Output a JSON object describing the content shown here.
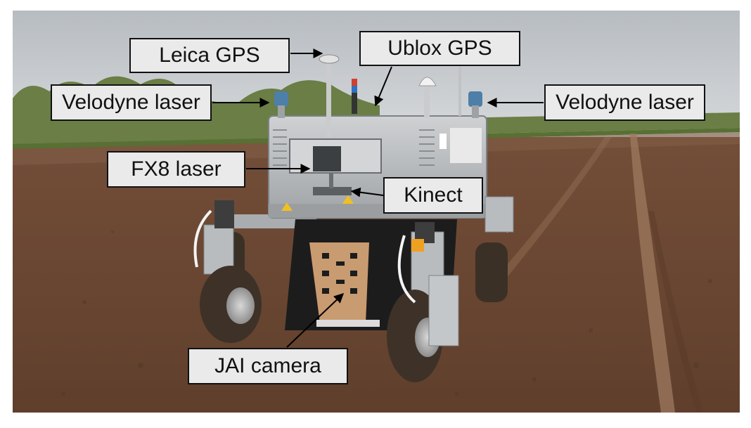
{
  "colors": {
    "sky": "#c5c9cd",
    "treeline": "#6a7e45",
    "soil": "#6e4a35",
    "robot_body": "#b9bcbf",
    "label_fill": "#eaeaea",
    "label_border": "#111111"
  },
  "labels": {
    "leica_gps": "Leica GPS",
    "ublox_gps": "Ublox GPS",
    "velodyne_left": "Velodyne laser",
    "velodyne_right": "Velodyne laser",
    "fx8_laser": "FX8 laser",
    "kinect": "Kinect",
    "jai_camera": "JAI camera"
  }
}
